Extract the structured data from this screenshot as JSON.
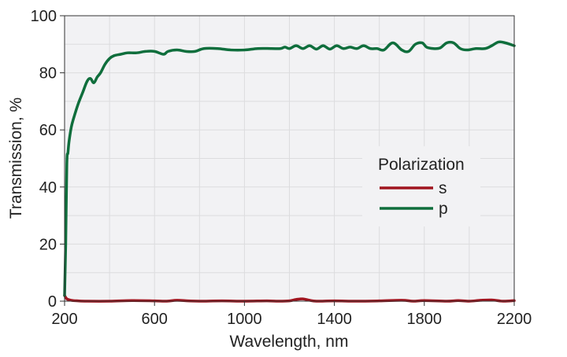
{
  "chart_data": {
    "type": "line",
    "title": "",
    "xlabel": "Wavelength, nm",
    "ylabel": "Transmission, %",
    "xlim": [
      200,
      2200
    ],
    "ylim": [
      0,
      100
    ],
    "xticks": [
      200,
      600,
      1000,
      1400,
      1800,
      2200
    ],
    "yticks": [
      0,
      20,
      40,
      60,
      80,
      100
    ],
    "grid": true,
    "legend": {
      "title": "Polarization",
      "position": "center-right"
    },
    "colors": {
      "plot_bg": "#f2f2f4",
      "grid": "#dcdcde",
      "axis": "#333333"
    },
    "series": [
      {
        "name": "s",
        "color": "#a0141e",
        "x": [
          200,
          210,
          230,
          260,
          300,
          400,
          500,
          600,
          650,
          700,
          750,
          800,
          900,
          1000,
          1100,
          1150,
          1200,
          1230,
          1260,
          1290,
          1320,
          1400,
          1500,
          1600,
          1700,
          1750,
          1800,
          1900,
          1950,
          2000,
          2050,
          2100,
          2150,
          2200
        ],
        "y": [
          2,
          0.8,
          0.3,
          0.1,
          0.0,
          0.0,
          0.2,
          0.1,
          0.0,
          0.3,
          0.1,
          0.0,
          0.1,
          0.0,
          0.1,
          0.0,
          0.1,
          0.6,
          0.8,
          0.3,
          0.0,
          0.1,
          0.0,
          0.1,
          0.3,
          0.0,
          0.2,
          0.0,
          0.2,
          0.0,
          0.3,
          0.4,
          0.0,
          0.2
        ]
      },
      {
        "name": "p",
        "color": "#0f6e3c",
        "x": [
          200,
          205,
          210,
          215,
          220,
          230,
          240,
          260,
          280,
          300,
          315,
          330,
          345,
          360,
          380,
          400,
          420,
          450,
          480,
          520,
          560,
          600,
          640,
          660,
          700,
          740,
          780,
          820,
          880,
          940,
          1000,
          1060,
          1120,
          1160,
          1180,
          1200,
          1230,
          1260,
          1290,
          1320,
          1350,
          1380,
          1410,
          1440,
          1470,
          1500,
          1530,
          1560,
          1590,
          1620,
          1660,
          1700,
          1730,
          1760,
          1790,
          1810,
          1840,
          1870,
          1900,
          1930,
          1960,
          1990,
          2030,
          2070,
          2100,
          2130,
          2160,
          2200
        ],
        "y": [
          2,
          20,
          48,
          52,
          56,
          61,
          64,
          69,
          73,
          77,
          78,
          76.5,
          78.5,
          80,
          83,
          85,
          86,
          86.5,
          87,
          87,
          87.5,
          87.5,
          86.5,
          87.5,
          88,
          87.5,
          87.5,
          88.5,
          88.5,
          88,
          88,
          88.5,
          88.5,
          88.5,
          89,
          88.5,
          89.5,
          88.5,
          89.5,
          88.3,
          89.5,
          88.3,
          89.5,
          88.5,
          89,
          88.5,
          89.5,
          88.5,
          88.5,
          88,
          90.5,
          88,
          87.5,
          90,
          90.5,
          89,
          88.5,
          88.7,
          90.5,
          90.5,
          88.5,
          88,
          88.5,
          88.5,
          89.5,
          90.8,
          90.5,
          89.5
        ]
      }
    ]
  }
}
